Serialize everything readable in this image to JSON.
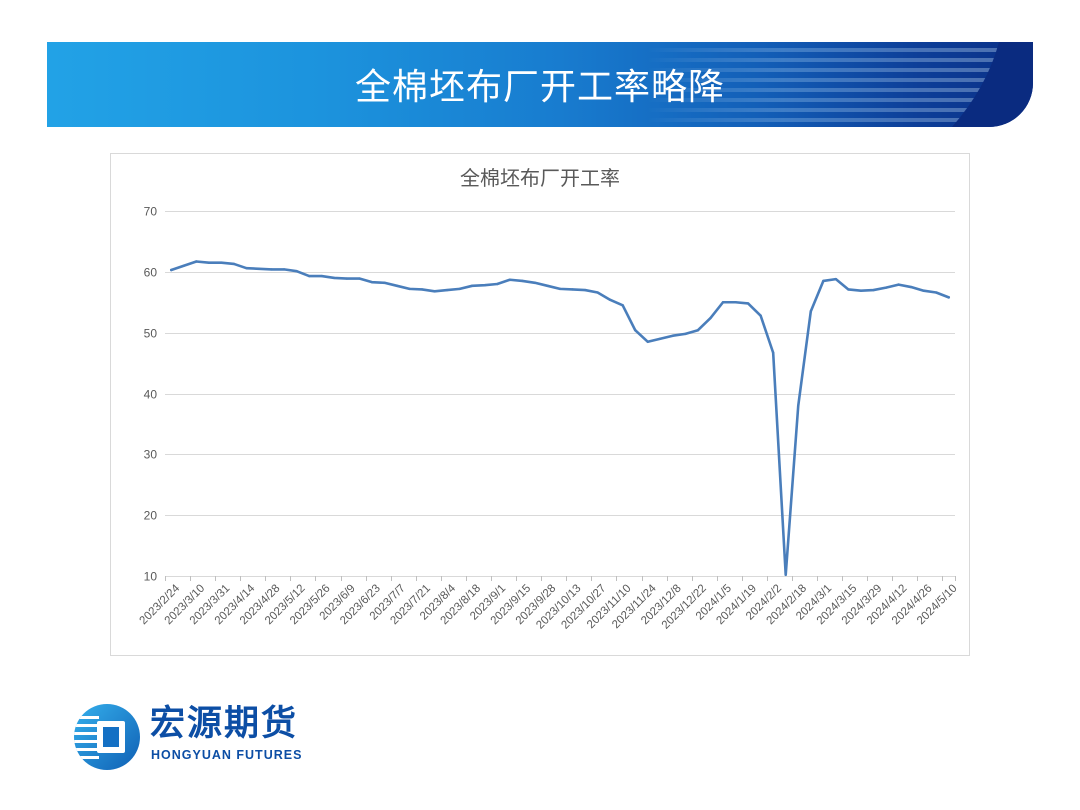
{
  "slide": {
    "title": "全棉坯布厂开工率略降"
  },
  "logo": {
    "name_cn": "宏源期货",
    "name_en": "HONGYUAN FUTURES"
  },
  "colors": {
    "banner_start": "#22a2e6",
    "banner_end": "#0a2f86",
    "brand_text": "#0c4ea5",
    "logo_blue": "#1a8ad6"
  },
  "chart_data": {
    "type": "line",
    "title": "全棉坯布厂开工率",
    "xlabel": "",
    "ylabel": "",
    "ylim": [
      10,
      70
    ],
    "yticks": [
      10,
      20,
      30,
      40,
      50,
      60,
      70
    ],
    "grid": true,
    "legend": "none",
    "line_color": "#4a7ebb",
    "grid_color": "#d9d9d9",
    "categories": [
      "2023/2/24",
      "",
      "2023/3/10",
      "",
      "2023/3/31",
      "",
      "2023/4/14",
      "",
      "2023/4/28",
      "",
      "2023/5/12",
      "",
      "2023/5/26",
      "",
      "2023/6/9",
      "",
      "2023/6/23",
      "",
      "2023/7/7",
      "",
      "2023/7/21",
      "",
      "2023/8/4",
      "",
      "2023/8/18",
      "",
      "2023/9/1",
      "",
      "2023/9/15",
      "",
      "2023/9/28",
      "",
      "2023/10/13",
      "",
      "2023/10/27",
      "",
      "2023/11/10",
      "",
      "2023/11/24",
      "",
      "2023/12/8",
      "",
      "2023/12/22",
      "",
      "2024/1/5",
      "",
      "2024/1/19",
      "",
      "2024/2/2",
      "",
      "2024/2/18",
      "",
      "2024/3/1",
      "",
      "2024/3/15",
      "",
      "2024/3/29",
      "",
      "2024/4/12",
      "",
      "2024/4/26",
      "",
      "2024/5/10"
    ],
    "series": [
      {
        "values": [
          60.3,
          61.0,
          61.7,
          61.5,
          61.5,
          61.3,
          60.6,
          60.5,
          60.4,
          60.4,
          60.1,
          59.3,
          59.3,
          59.0,
          58.9,
          58.9,
          58.3,
          58.2,
          57.7,
          57.2,
          57.1,
          56.8,
          57.0,
          57.2,
          57.7,
          57.8,
          58.0,
          58.7,
          58.5,
          58.2,
          57.7,
          57.2,
          57.1,
          57.0,
          56.6,
          55.4,
          54.5,
          50.4,
          48.5,
          49.0,
          49.5,
          49.8,
          50.4,
          52.4,
          55.0,
          55.0,
          54.8,
          52.8,
          46.7,
          10.2,
          38.0,
          53.5,
          58.5,
          58.8,
          57.1,
          56.9,
          57.0,
          57.4,
          57.9,
          57.5,
          56.9,
          56.6,
          55.8
        ]
      }
    ]
  }
}
